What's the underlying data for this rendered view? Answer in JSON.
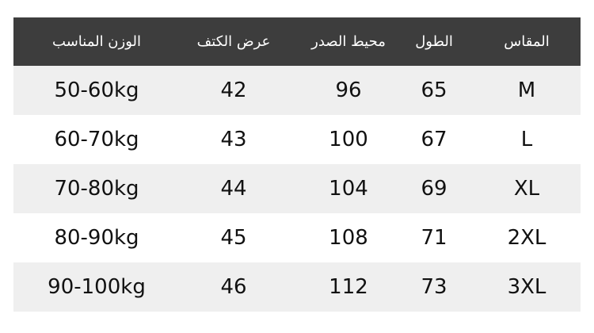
{
  "colors": {
    "header_bg": "#3d3d3d",
    "header_text": "#ffffff",
    "alt_row_bg": "#efefef"
  },
  "headers": [
    "المقاس",
    "الطول",
    "محيط الصدر",
    "عرض الكتف",
    "الوزن المناسب"
  ],
  "rows": [
    [
      "M",
      "65",
      "96",
      "42",
      "50-60kg"
    ],
    [
      "L",
      "67",
      "100",
      "43",
      "60-70kg"
    ],
    [
      "XL",
      "69",
      "104",
      "44",
      "70-80kg"
    ],
    [
      "2XL",
      "71",
      "108",
      "45",
      "80-90kg"
    ],
    [
      "3XL",
      "73",
      "112",
      "46",
      "90-100kg"
    ]
  ]
}
